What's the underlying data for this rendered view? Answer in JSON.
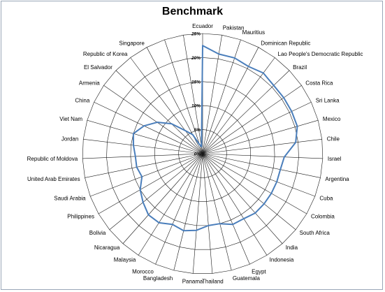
{
  "chart_data": {
    "type": "radar",
    "title": "Benchmark",
    "axis_ticks": [
      "0%",
      "5%",
      "10%",
      "15%",
      "20%",
      "25%"
    ],
    "rmax": 25,
    "grid": true,
    "legend": "none",
    "series": [
      {
        "color": "#4a7ebb",
        "values": [
          22.5,
          21.0,
          21.0,
          20.5,
          21.0,
          20.5,
          20.5,
          20.5,
          20.5,
          19.5,
          17.0,
          16.5,
          16.5,
          16.5,
          16.5,
          16.5,
          16.0,
          16.0,
          15.0,
          15.0,
          16.0,
          16.5,
          16.0,
          17.0,
          17.0,
          16.0,
          15.0,
          13.5,
          14.0,
          14.0,
          14.5,
          15.0,
          13.5,
          11.5,
          9.0,
          6.0,
          4.5,
          2.0,
          1.5
        ]
      }
    ],
    "categories": [
      "Ecuador",
      "Pakistan",
      "Mauritius",
      "Dominican Republic",
      "Lao People's Democratic Republic",
      "Brazil",
      "Costa Rica",
      "Sri Lanka",
      "Mexico",
      "Chile",
      "Israel",
      "Argentina",
      "Cuba",
      "Colombia",
      "South Africa",
      "India",
      "Indonesia",
      "Egypt",
      "Guatemala",
      "Thailand",
      "Panama",
      "Bangladesh",
      "Morocco",
      "Malaysia",
      "Nicaragua",
      "Bolivia",
      "Philippines",
      "Saudi Arabia",
      "United Arab Emirates",
      "Republic of Moldova",
      "Jordan",
      "Viet Nam",
      "China",
      "Armenia",
      "El Salvador",
      "Republic of Korea",
      "Singapore",
      "",
      ""
    ]
  }
}
